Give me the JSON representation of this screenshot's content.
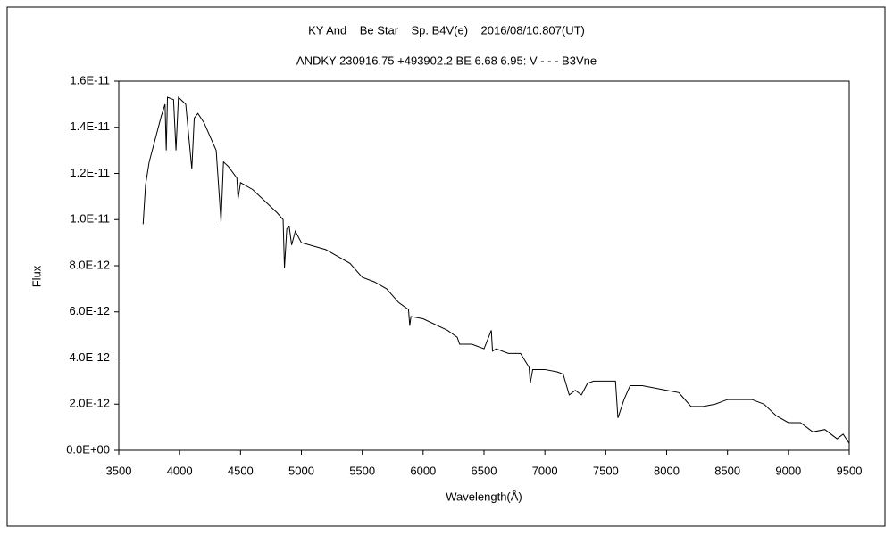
{
  "chart_data": {
    "type": "line",
    "title": "KY And    Be Star    Sp. B4V(e)    2016/08/10.807(UT)",
    "subtitle": "ANDKY 230916.75 +493902.2 BE 6.68 6.95: V - - - B3Vne",
    "xlabel": "Wavelength(Å)",
    "ylabel": "Flux",
    "color": "#000000",
    "grid": false,
    "x": [
      3700,
      3720,
      3750,
      3800,
      3850,
      3880,
      3890,
      3900,
      3950,
      3970,
      3990,
      4050,
      4100,
      4120,
      4150,
      4200,
      4300,
      4340,
      4360,
      4400,
      4470,
      4480,
      4500,
      4600,
      4700,
      4800,
      4850,
      4861,
      4880,
      4900,
      4920,
      4950,
      5000,
      5200,
      5400,
      5500,
      5600,
      5700,
      5800,
      5880,
      5890,
      5900,
      6000,
      6200,
      6280,
      6300,
      6400,
      6500,
      6560,
      6570,
      6600,
      6700,
      6800,
      6870,
      6880,
      6900,
      7000,
      7100,
      7150,
      7200,
      7250,
      7300,
      7350,
      7400,
      7500,
      7580,
      7600,
      7650,
      7700,
      7800,
      7900,
      8000,
      8100,
      8200,
      8300,
      8400,
      8500,
      8600,
      8700,
      8800,
      8900,
      9000,
      9100,
      9200,
      9300,
      9400,
      9450,
      9500
    ],
    "values": [
      9.8e-12,
      1.15e-11,
      1.25e-11,
      1.35e-11,
      1.45e-11,
      1.5e-11,
      1.3e-11,
      1.53e-11,
      1.52e-11,
      1.3e-11,
      1.53e-11,
      1.5e-11,
      1.22e-11,
      1.44e-11,
      1.46e-11,
      1.42e-11,
      1.3e-11,
      9.9e-12,
      1.25e-11,
      1.23e-11,
      1.18e-11,
      1.09e-11,
      1.16e-11,
      1.13e-11,
      1.08e-11,
      1.03e-11,
      1e-11,
      7.9e-12,
      9.6e-12,
      9.7e-12,
      8.9e-12,
      9.5e-12,
      9e-12,
      8.7e-12,
      8.1e-12,
      7.5e-12,
      7.3e-12,
      7e-12,
      6.4e-12,
      6.1e-12,
      5.4e-12,
      5.8e-12,
      5.7e-12,
      5.2e-12,
      4.9e-12,
      4.6e-12,
      4.6e-12,
      4.4e-12,
      5.2e-12,
      4.3e-12,
      4.4e-12,
      4.2e-12,
      4.2e-12,
      3.6e-12,
      2.9e-12,
      3.5e-12,
      3.5e-12,
      3.4e-12,
      3.3e-12,
      2.4e-12,
      2.6e-12,
      2.4e-12,
      2.9e-12,
      3e-12,
      3e-12,
      3e-12,
      1.4e-12,
      2.2e-12,
      2.8e-12,
      2.8e-12,
      2.7e-12,
      2.6e-12,
      2.5e-12,
      1.9e-12,
      1.9e-12,
      2e-12,
      2.2e-12,
      2.2e-12,
      2.2e-12,
      2e-12,
      1.5e-12,
      1.2e-12,
      1.2e-12,
      8e-13,
      9e-13,
      5e-13,
      7e-13,
      3e-13
    ],
    "xlim": [
      3500,
      9500
    ],
    "xticks": [
      3500,
      4000,
      4500,
      5000,
      5500,
      6000,
      6500,
      7000,
      7500,
      8000,
      8500,
      9000,
      9500
    ],
    "ylim": [
      0,
      1.6e-11
    ],
    "yticks": [
      {
        "value": 0,
        "label": "0.0E+00"
      },
      {
        "value": 2e-12,
        "label": "2.0E-12"
      },
      {
        "value": 4e-12,
        "label": "4.0E-12"
      },
      {
        "value": 6e-12,
        "label": "6.0E-12"
      },
      {
        "value": 8e-12,
        "label": "8.0E-12"
      },
      {
        "value": 1e-11,
        "label": "1.0E-11"
      },
      {
        "value": 1.2e-11,
        "label": "1.2E-11"
      },
      {
        "value": 1.4e-11,
        "label": "1.4E-11"
      },
      {
        "value": 1.6e-11,
        "label": "1.6E-11"
      }
    ]
  }
}
